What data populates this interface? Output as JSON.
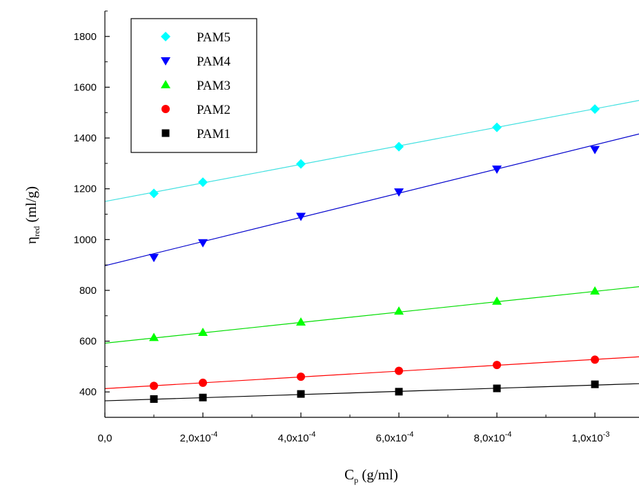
{
  "chart_data": {
    "type": "scatter",
    "xlabel": {
      "main": "C",
      "sub": "p",
      "unit": " (g/ml)"
    },
    "ylabel": {
      "main": "η",
      "sub": "red",
      "unit": " (ml/g)"
    },
    "xlim": [
      0,
      0.00109
    ],
    "ylim": [
      300,
      1900
    ],
    "x_ticks": [
      {
        "value": 0,
        "label": "0,0",
        "exp": ""
      },
      {
        "value": 0.0002,
        "label": "2,0x10",
        "exp": "-4"
      },
      {
        "value": 0.0004,
        "label": "4,0x10",
        "exp": "-4"
      },
      {
        "value": 0.0006,
        "label": "6,0x10",
        "exp": "-4"
      },
      {
        "value": 0.0008,
        "label": "8,0x10",
        "exp": "-4"
      },
      {
        "value": 0.001,
        "label": "1,0x10",
        "exp": "-3"
      }
    ],
    "x_minor_ticks": [
      0.0001,
      0.0003,
      0.0005,
      0.0007,
      0.0009
    ],
    "y_ticks": [
      400,
      600,
      800,
      1000,
      1200,
      1400,
      1600,
      1800
    ],
    "y_minor_ticks": [
      300,
      500,
      700,
      900,
      1100,
      1300,
      1500,
      1700,
      1900
    ],
    "grid": false,
    "legend_position": "top-left",
    "series": [
      {
        "name": "PAM5",
        "marker": "diamond",
        "color": "#00ffff",
        "line_color": "#40e0e0",
        "x": [
          0.0001,
          0.0002,
          0.0004,
          0.0006,
          0.0008,
          0.001
        ],
        "y": [
          1182,
          1226,
          1298,
          1366,
          1442,
          1514
        ],
        "fit": {
          "intercept": 1150,
          "slope": 365000
        }
      },
      {
        "name": "PAM4",
        "marker": "triangle-down",
        "color": "#0000ff",
        "line_color": "#0000cc",
        "x": [
          0.0001,
          0.0002,
          0.0004,
          0.0006,
          0.0008,
          0.001
        ],
        "y": [
          930,
          988,
          1092,
          1188,
          1278,
          1355
        ],
        "fit": {
          "intercept": 897,
          "slope": 476000
        }
      },
      {
        "name": "PAM3",
        "marker": "triangle-up",
        "color": "#00ff00",
        "line_color": "#00dd00",
        "x": [
          0.0001,
          0.0002,
          0.0004,
          0.0006,
          0.0008,
          0.001
        ],
        "y": [
          614,
          634,
          675,
          718,
          757,
          797
        ],
        "fit": {
          "intercept": 592,
          "slope": 204000
        }
      },
      {
        "name": "PAM2",
        "marker": "circle",
        "color": "#ff0000",
        "line_color": "#ff0000",
        "x": [
          0.0001,
          0.0002,
          0.0004,
          0.0006,
          0.0008,
          0.001
        ],
        "y": [
          424,
          436,
          460,
          483,
          506,
          527
        ],
        "fit": {
          "intercept": 413,
          "slope": 115000
        }
      },
      {
        "name": "PAM1",
        "marker": "square",
        "color": "#000000",
        "line_color": "#000000",
        "x": [
          0.0001,
          0.0002,
          0.0004,
          0.0006,
          0.0008,
          0.001
        ],
        "y": [
          372,
          378,
          392,
          401,
          414,
          430
        ],
        "fit": {
          "intercept": 365,
          "slope": 62000
        }
      }
    ]
  }
}
